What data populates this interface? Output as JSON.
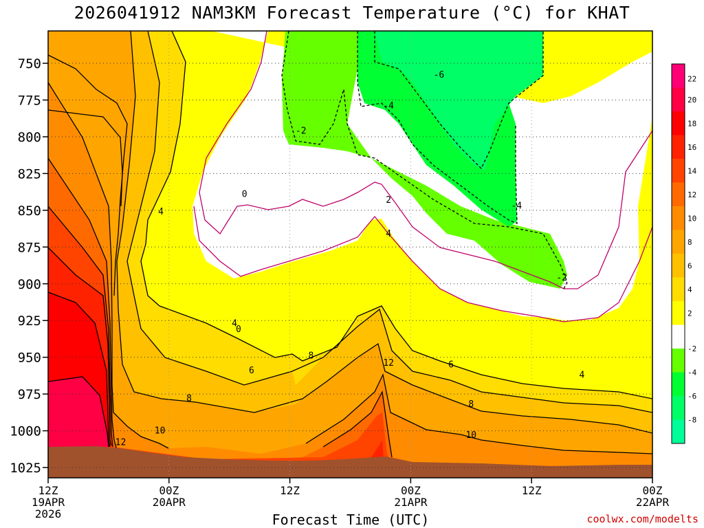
{
  "title": "2026041912 NAM3KM Forecast Temperature (°C) for KHAT",
  "credit": "coolwx.com/modelts",
  "chart_data": {
    "type": "heatmap",
    "title": "2026041912 NAM3KM Forecast Temperature (°C) for KHAT",
    "xlabel": "Forecast Time (UTC)",
    "ylabel": "",
    "x_range_hours": [
      0,
      60
    ],
    "x_ticks": [
      {
        "hour": 0,
        "lines": [
          "12Z",
          "19APR",
          "2026"
        ]
      },
      {
        "hour": 12,
        "lines": [
          "00Z",
          "20APR"
        ]
      },
      {
        "hour": 24,
        "lines": [
          "12Z"
        ]
      },
      {
        "hour": 36,
        "lines": [
          "00Z",
          "21APR"
        ]
      },
      {
        "hour": 48,
        "lines": [
          "12Z"
        ]
      },
      {
        "hour": 60,
        "lines": [
          "00Z",
          "22APR"
        ]
      }
    ],
    "y_range_hpa": [
      1032,
      728
    ],
    "y_ticks": [
      "750",
      "775",
      "800",
      "825",
      "850",
      "875",
      "900",
      "925",
      "950",
      "975",
      "1000",
      "1025"
    ],
    "grid": true,
    "colorbar": {
      "labels": [
        "22",
        "20",
        "18",
        "16",
        "14",
        "12",
        "10",
        "8",
        "6",
        "4",
        "2",
        "-2",
        "-4",
        "-6",
        "-8"
      ],
      "bins": [
        {
          "min": -10,
          "max": -8,
          "color": "#00ff99"
        },
        {
          "min": -8,
          "max": -6,
          "color": "#00ff66"
        },
        {
          "min": -6,
          "max": -4,
          "color": "#00ff33"
        },
        {
          "min": -4,
          "max": -2,
          "color": "#66ff00"
        },
        {
          "min": -2,
          "max": 2,
          "color": "#ffffff"
        },
        {
          "min": 2,
          "max": 4,
          "color": "#ffff00"
        },
        {
          "min": 4,
          "max": 6,
          "color": "#ffdd00"
        },
        {
          "min": 6,
          "max": 8,
          "color": "#ffc000"
        },
        {
          "min": 8,
          "max": 10,
          "color": "#ffa500"
        },
        {
          "min": 10,
          "max": 12,
          "color": "#ff8c00"
        },
        {
          "min": 12,
          "max": 14,
          "color": "#ff6a00"
        },
        {
          "min": 14,
          "max": 16,
          "color": "#ff4400"
        },
        {
          "min": 16,
          "max": 18,
          "color": "#ff2200"
        },
        {
          "min": 18,
          "max": 20,
          "color": "#ff0000"
        },
        {
          "min": 20,
          "max": 22,
          "color": "#ff0044"
        },
        {
          "min": 22,
          "max": 24,
          "color": "#ff0077"
        }
      ]
    },
    "ground_color": "#a0522d",
    "contour_labels": [
      {
        "text": "0",
        "hour": 19.5,
        "hpa": 839
      },
      {
        "text": "4",
        "hour": 11.2,
        "hpa": 851
      },
      {
        "text": "4",
        "hour": 18.5,
        "hpa": 927
      },
      {
        "text": "0",
        "hour": 18.9,
        "hpa": 931
      },
      {
        "text": "6",
        "hour": 20.2,
        "hpa": 959
      },
      {
        "text": "8",
        "hour": 14.0,
        "hpa": 978
      },
      {
        "text": "10",
        "hour": 11.1,
        "hpa": 1000
      },
      {
        "text": "12",
        "hour": 7.2,
        "hpa": 1008
      },
      {
        "text": "8",
        "hour": 26.1,
        "hpa": 949
      },
      {
        "text": "12",
        "hour": 33.8,
        "hpa": 954
      },
      {
        "text": "4",
        "hour": 33.8,
        "hpa": 866
      },
      {
        "text": "2",
        "hour": 33.8,
        "hpa": 843
      },
      {
        "text": "-2",
        "hour": 25.1,
        "hpa": 796
      },
      {
        "text": "-4",
        "hour": 33.8,
        "hpa": 779
      },
      {
        "text": "-6",
        "hour": 38.8,
        "hpa": 758
      },
      {
        "text": "6",
        "hour": 40.0,
        "hpa": 955
      },
      {
        "text": "8",
        "hour": 42.0,
        "hpa": 982
      },
      {
        "text": "10",
        "hour": 42.0,
        "hpa": 1003
      },
      {
        "text": "-4",
        "hour": 46.5,
        "hpa": 847
      },
      {
        "text": "-2",
        "hour": 51.0,
        "hpa": 896
      },
      {
        "text": "4",
        "hour": 53.0,
        "hpa": 962
      }
    ]
  }
}
